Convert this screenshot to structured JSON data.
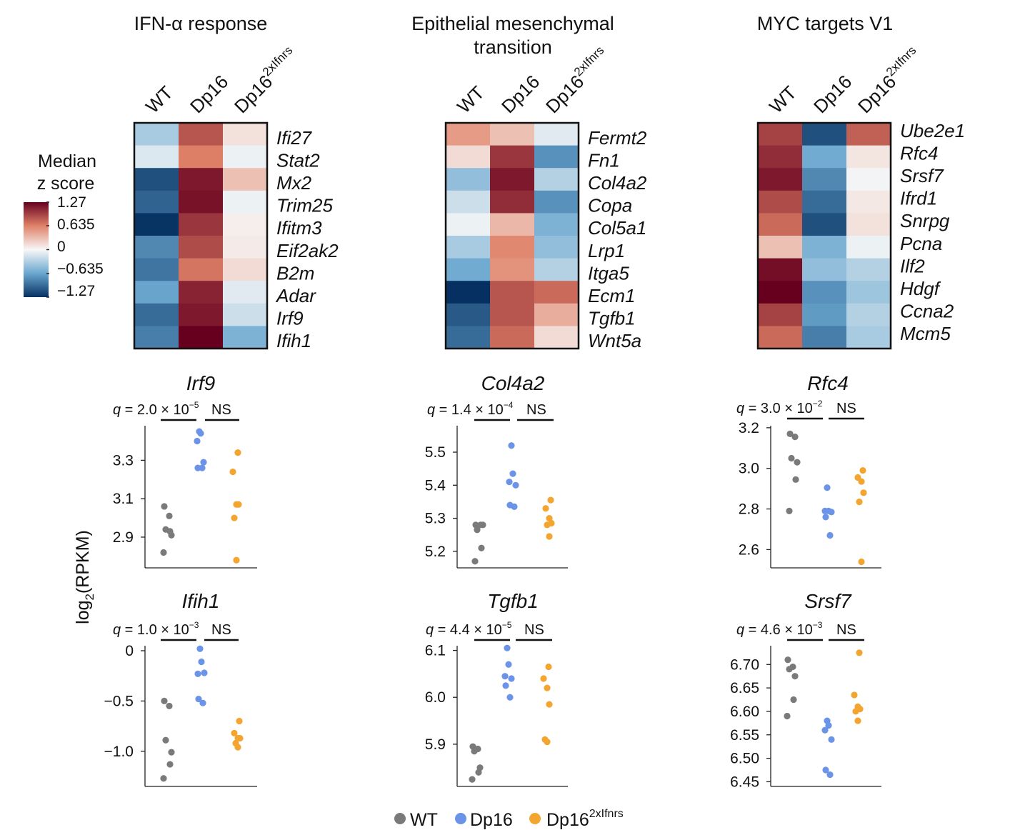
{
  "colorbar": {
    "title_line1": "Median",
    "title_line2": "z score",
    "ticks": [
      "1.27",
      "0.635",
      "0",
      "−0.635",
      "−1.27"
    ],
    "max": 1.27
  },
  "column_labels": [
    "WT",
    "Dp16",
    "Dp16",
    "2xIfnrs"
  ],
  "heatmaps": [
    {
      "title_lines": [
        "IFN-α response"
      ],
      "genes": [
        "Ifi27",
        "Stat2",
        "Mx2",
        "Trim25",
        "Ifitm3",
        "Eif2ak2",
        "B2m",
        "Adar",
        "Irf9",
        "Ifih1"
      ],
      "values": [
        [
          -0.35,
          0.85,
          0.12
        ],
        [
          -0.12,
          0.65,
          -0.05
        ],
        [
          -1.1,
          1.15,
          0.3
        ],
        [
          -1.0,
          1.18,
          -0.05
        ],
        [
          -1.25,
          1.0,
          0.05
        ],
        [
          -0.8,
          0.9,
          0.07
        ],
        [
          -0.9,
          0.7,
          0.15
        ],
        [
          -0.65,
          1.1,
          -0.1
        ],
        [
          -0.95,
          1.15,
          -0.2
        ],
        [
          -0.85,
          1.27,
          -0.55
        ]
      ]
    },
    {
      "title_lines": [
        "Epithelial mesenchymal",
        "transition"
      ],
      "genes": [
        "Fermt2",
        "Fn1",
        "Col4a2",
        "Copa",
        "Col5a1",
        "Lrp1",
        "Itga5",
        "Ecm1",
        "Tgfb1",
        "Wnt5a"
      ],
      "values": [
        [
          0.5,
          0.3,
          -0.1
        ],
        [
          0.15,
          1.0,
          -0.75
        ],
        [
          -0.45,
          1.15,
          -0.3
        ],
        [
          -0.2,
          1.05,
          -0.75
        ],
        [
          -0.05,
          0.35,
          -0.55
        ],
        [
          -0.35,
          0.6,
          -0.45
        ],
        [
          -0.6,
          0.55,
          -0.3
        ],
        [
          -1.27,
          0.85,
          0.75
        ],
        [
          -1.05,
          0.85,
          0.4
        ],
        [
          -0.95,
          0.75,
          0.15
        ]
      ]
    },
    {
      "title_lines": [
        "MYC targets V1"
      ],
      "genes": [
        "Ube2e1",
        "Rfc4",
        "Srsf7",
        "Ifrd1",
        "Snrpg",
        "Pcna",
        "Ilf2",
        "Hdgf",
        "Ccna2",
        "Mcm5"
      ],
      "values": [
        [
          0.95,
          -1.1,
          0.8
        ],
        [
          1.05,
          -0.6,
          0.1
        ],
        [
          1.15,
          -0.8,
          -0.02
        ],
        [
          0.9,
          -0.95,
          0.08
        ],
        [
          0.75,
          -1.1,
          0.12
        ],
        [
          0.3,
          -0.55,
          -0.05
        ],
        [
          1.2,
          -0.45,
          -0.3
        ],
        [
          1.27,
          -0.75,
          -0.4
        ],
        [
          0.95,
          -0.7,
          -0.3
        ],
        [
          0.75,
          -0.85,
          -0.35
        ]
      ]
    }
  ],
  "chart_data": [
    {
      "type": "scatter",
      "gene": "Irf9",
      "q_prefix": "q",
      "q_text": " = 2.0 × 10",
      "q_exp": "−5",
      "ns": "NS",
      "ylim": [
        2.74,
        3.48
      ],
      "ticks": [
        "2.9",
        "3.1",
        "3.3"
      ],
      "tick_values": [
        2.9,
        3.1,
        3.3
      ],
      "groups": [
        {
          "name": "WT",
          "values": [
            3.06,
            3.01,
            2.94,
            2.91,
            2.93,
            2.82
          ]
        },
        {
          "name": "Dp16",
          "values": [
            3.45,
            3.44,
            3.4,
            3.29,
            3.26,
            3.26
          ]
        },
        {
          "name": "Dp16 2xIfnrs",
          "values": [
            3.34,
            3.24,
            3.07,
            3.07,
            3.0,
            2.78
          ]
        }
      ]
    },
    {
      "type": "scatter",
      "gene": "Col4a2",
      "q_prefix": "q",
      "q_text": " = 1.4 × 10",
      "q_exp": "−4",
      "ns": "NS",
      "ylim": [
        5.15,
        5.58
      ],
      "ticks": [
        "5.2",
        "5.3",
        "5.4",
        "5.5"
      ],
      "tick_values": [
        5.2,
        5.3,
        5.4,
        5.5
      ],
      "groups": [
        {
          "name": "WT",
          "values": [
            5.28,
            5.28,
            5.265,
            5.28,
            5.21,
            5.17
          ]
        },
        {
          "name": "Dp16",
          "values": [
            5.52,
            5.435,
            5.41,
            5.4,
            5.34,
            5.335
          ]
        },
        {
          "name": "Dp16 2xIfnrs",
          "values": [
            5.355,
            5.33,
            5.3,
            5.285,
            5.28,
            5.245
          ]
        }
      ]
    },
    {
      "type": "scatter",
      "gene": "Rfc4",
      "q_prefix": "q",
      "q_text": " = 3.0 × 10",
      "q_exp": "−2",
      "ns": "NS",
      "ylim": [
        2.51,
        3.21
      ],
      "ticks": [
        "2.6",
        "2.8",
        "3.0",
        "3.2"
      ],
      "tick_values": [
        2.6,
        2.8,
        3.0,
        3.2
      ],
      "groups": [
        {
          "name": "WT",
          "values": [
            3.17,
            3.155,
            3.05,
            3.03,
            2.945,
            2.79
          ]
        },
        {
          "name": "Dp16",
          "values": [
            2.905,
            2.79,
            2.79,
            2.785,
            2.76,
            2.67
          ]
        },
        {
          "name": "Dp16 2xIfnrs",
          "values": [
            2.99,
            2.955,
            2.935,
            2.88,
            2.835,
            2.54
          ]
        }
      ]
    },
    {
      "type": "scatter",
      "gene": "Ifih1",
      "q_prefix": "q",
      "q_text": " = 1.0 × 10",
      "q_exp": "−3",
      "ns": "NS",
      "ylim": [
        -1.35,
        0.05
      ],
      "ticks": [
        "0",
        "−0.5",
        "−1.0"
      ],
      "tick_values": [
        0,
        -0.5,
        -1.0
      ],
      "groups": [
        {
          "name": "WT",
          "values": [
            -0.5,
            -0.55,
            -0.89,
            -1.01,
            -1.13,
            -1.27
          ]
        },
        {
          "name": "Dp16",
          "values": [
            0.02,
            -0.11,
            -0.23,
            -0.22,
            -0.48,
            -0.52
          ]
        },
        {
          "name": "Dp16 2xIfnrs",
          "values": [
            -0.7,
            -0.82,
            -0.87,
            -0.87,
            -0.92,
            -0.96
          ]
        }
      ]
    },
    {
      "type": "scatter",
      "gene": "Tgfb1",
      "q_prefix": "q",
      "q_text": " = 4.4 × 10",
      "q_exp": "−5",
      "ns": "NS",
      "ylim": [
        5.81,
        6.11
      ],
      "ticks": [
        "5.9",
        "6.0",
        "6.1"
      ],
      "tick_values": [
        5.9,
        6.0,
        6.1
      ],
      "groups": [
        {
          "name": "WT",
          "values": [
            5.895,
            5.89,
            5.885,
            5.85,
            5.84,
            5.825
          ]
        },
        {
          "name": "Dp16",
          "values": [
            6.105,
            6.07,
            6.045,
            6.04,
            6.025,
            6.0
          ]
        },
        {
          "name": "Dp16 2xIfnrs",
          "values": [
            6.065,
            6.04,
            6.02,
            5.985,
            5.91,
            5.905
          ]
        }
      ]
    },
    {
      "type": "scatter",
      "gene": "Srsf7",
      "q_prefix": "q",
      "q_text": " = 4.6 × 10",
      "q_exp": "−3",
      "ns": "NS",
      "ylim": [
        6.44,
        6.74
      ],
      "ticks": [
        "6.45",
        "6.50",
        "6.55",
        "6.60",
        "6.65",
        "6.70"
      ],
      "tick_values": [
        6.45,
        6.5,
        6.55,
        6.6,
        6.65,
        6.7
      ],
      "groups": [
        {
          "name": "WT",
          "values": [
            6.71,
            6.695,
            6.69,
            6.675,
            6.625,
            6.59
          ]
        },
        {
          "name": "Dp16",
          "values": [
            6.58,
            6.57,
            6.56,
            6.54,
            6.475,
            6.465
          ]
        },
        {
          "name": "Dp16 2xIfnrs",
          "values": [
            6.725,
            6.635,
            6.61,
            6.605,
            6.6,
            6.58
          ]
        }
      ]
    }
  ],
  "ylabel": {
    "prefix": "log",
    "sub": "2",
    "suffix": "(RPKM)"
  },
  "legend": [
    {
      "label": "WT",
      "color": "#7a7a7a"
    },
    {
      "label": "Dp16",
      "color": "#6b93e8"
    },
    {
      "label": "Dp16",
      "sup": "2xIfnrs",
      "color": "#f3a530"
    }
  ],
  "colors": {
    "WT": "#7a7a7a",
    "Dp16": "#6b93e8",
    "Dp16_2xIfnrs": "#f3a530"
  }
}
